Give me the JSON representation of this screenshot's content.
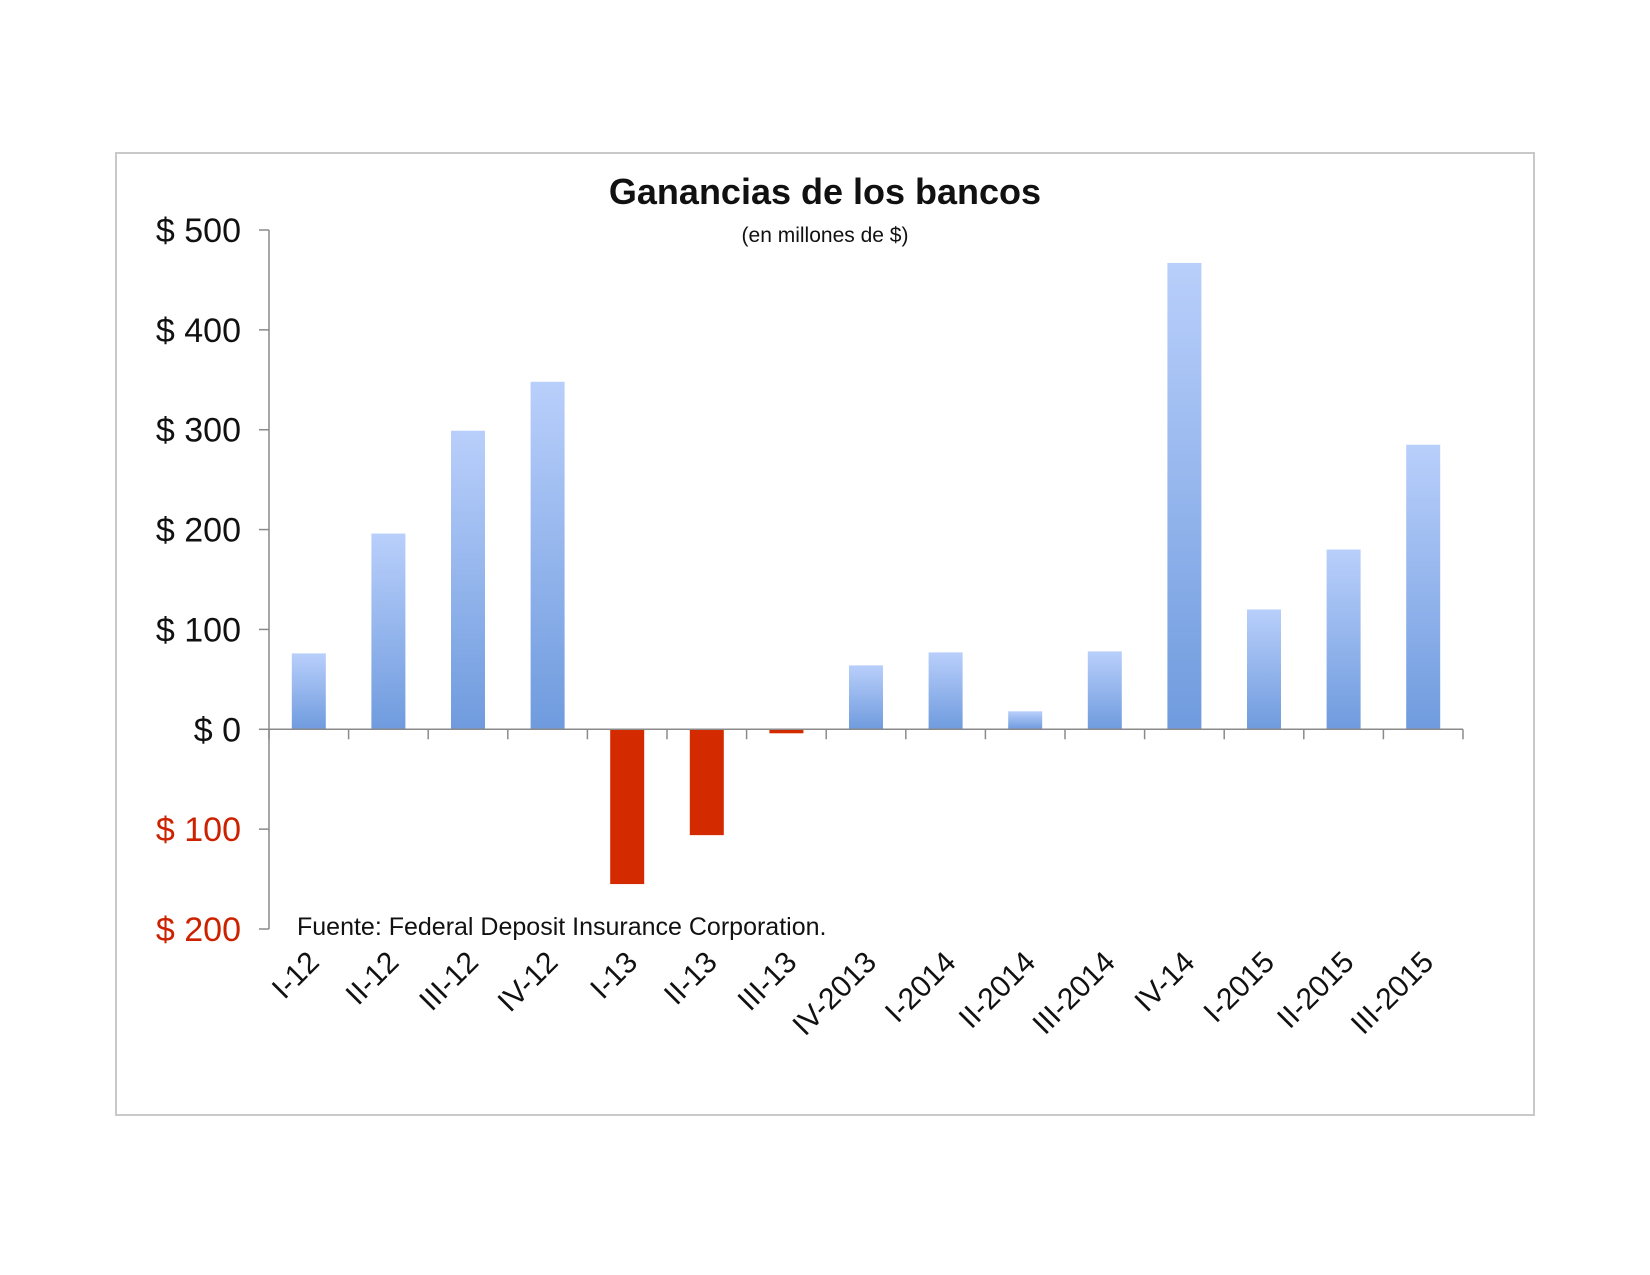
{
  "chart_data": {
    "type": "bar",
    "title": "Ganancias de los bancos",
    "subtitle": "(en millones de $)",
    "source": "Fuente: Federal Deposit Insurance Corporation.",
    "categories": [
      "I-12",
      "II-12",
      "III-12",
      "IV-12",
      "I-13",
      "II-13",
      "III-13",
      "IV-2013",
      "I-2014",
      "II-2014",
      "III-2014",
      "IV-14",
      "I-2015",
      "II-2015",
      "III-2015"
    ],
    "values": [
      76,
      196,
      299,
      348,
      -155,
      -106,
      -4,
      64,
      77,
      18,
      78,
      467,
      120,
      180,
      285
    ],
    "ylim": [
      -200,
      500
    ],
    "yticks": [
      {
        "value": 500,
        "label": "$ 500"
      },
      {
        "value": 400,
        "label": "$ 400"
      },
      {
        "value": 300,
        "label": "$ 300"
      },
      {
        "value": 200,
        "label": "$ 200"
      },
      {
        "value": 100,
        "label": "$ 100"
      },
      {
        "value": 0,
        "label": "$ 0"
      },
      {
        "value": -100,
        "label": "$ 100"
      },
      {
        "value": -200,
        "label": "$ 200"
      }
    ],
    "grid": false,
    "colors": {
      "positive_top": "#b9cffb",
      "positive_bottom": "#6f9bde",
      "negative": "#d42a00",
      "negative_label": "#cc2200",
      "axis": "#8a8a8a",
      "text": "#111111"
    }
  }
}
